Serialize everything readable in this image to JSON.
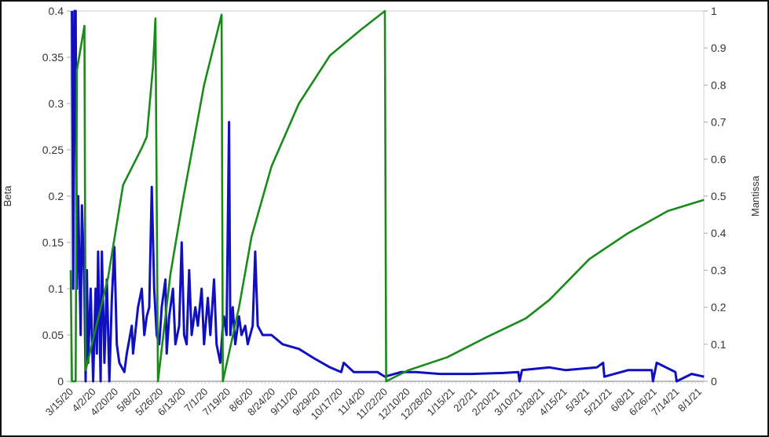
{
  "chart_data": {
    "type": "line",
    "title": "",
    "xlabel": "",
    "ylabel": "Beta",
    "y2label": "Mantissa",
    "ylim": [
      0,
      0.4
    ],
    "y2lim": [
      0,
      1
    ],
    "yticks": [
      "0",
      "0.05",
      "0.1",
      "0.15",
      "0.2",
      "0.25",
      "0.3",
      "0.35",
      "0.4"
    ],
    "y2ticks": [
      "0",
      "0.1",
      "0.2",
      "0.3",
      "0.4",
      "0.5",
      "0.6",
      "0.7",
      "0.8",
      "0.9",
      "1"
    ],
    "xticks": [
      "3/15/20",
      "4/2/20",
      "4/20/20",
      "5/8/20",
      "5/26/20",
      "6/13/20",
      "7/1/20",
      "7/19/20",
      "8/6/20",
      "8/24/20",
      "9/11/20",
      "9/29/20",
      "10/17/20",
      "11/4/20",
      "11/22/20",
      "12/10/20",
      "12/28/20",
      "1/15/21",
      "2/2/21",
      "2/20/21",
      "3/10/21",
      "3/28/21",
      "4/15/21",
      "5/3/21",
      "5/21/21",
      "6/8/21",
      "6/26/21",
      "7/14/21",
      "8/1/21"
    ],
    "grid": false,
    "legend": "none",
    "series": [
      {
        "axis": "left",
        "color": "#1010c0",
        "points": [
          [
            "2020-03-16",
            0.4
          ],
          [
            "2020-03-17",
            0.1
          ],
          [
            "2020-03-18",
            0.4
          ],
          [
            "2020-03-19",
            0.4
          ],
          [
            "2020-03-20",
            0.1
          ],
          [
            "2020-03-21",
            0.2
          ],
          [
            "2020-03-23",
            0.05
          ],
          [
            "2020-03-24",
            0.19
          ],
          [
            "2020-03-26",
            0.1
          ],
          [
            "2020-03-27",
            0.0
          ],
          [
            "2020-03-28",
            0.12
          ],
          [
            "2020-03-29",
            0.02
          ],
          [
            "2020-03-31",
            0.1
          ],
          [
            "2020-04-02",
            0.0
          ],
          [
            "2020-04-04",
            0.1
          ],
          [
            "2020-04-05",
            0.03
          ],
          [
            "2020-04-06",
            0.14
          ],
          [
            "2020-04-08",
            0.0
          ],
          [
            "2020-04-09",
            0.14
          ],
          [
            "2020-04-11",
            0.02
          ],
          [
            "2020-04-13",
            0.11
          ],
          [
            "2020-04-15",
            0.0
          ],
          [
            "2020-04-17",
            0.09
          ],
          [
            "2020-04-19",
            0.145
          ],
          [
            "2020-04-21",
            0.04
          ],
          [
            "2020-04-23",
            0.02
          ],
          [
            "2020-04-27",
            0.01
          ],
          [
            "2020-04-29",
            0.03
          ],
          [
            "2020-05-03",
            0.06
          ],
          [
            "2020-05-04",
            0.03
          ],
          [
            "2020-05-08",
            0.08
          ],
          [
            "2020-05-11",
            0.1
          ],
          [
            "2020-05-13",
            0.05
          ],
          [
            "2020-05-15",
            0.07
          ],
          [
            "2020-05-17",
            0.08
          ],
          [
            "2020-05-19",
            0.21
          ],
          [
            "2020-05-21",
            0.1
          ],
          [
            "2020-05-23",
            0.05
          ],
          [
            "2020-05-25",
            0.04
          ],
          [
            "2020-05-27",
            0.08
          ],
          [
            "2020-05-30",
            0.11
          ],
          [
            "2020-05-31",
            0.03
          ],
          [
            "2020-06-02",
            0.07
          ],
          [
            "2020-06-05",
            0.1
          ],
          [
            "2020-06-07",
            0.04
          ],
          [
            "2020-06-10",
            0.06
          ],
          [
            "2020-06-12",
            0.15
          ],
          [
            "2020-06-14",
            0.05
          ],
          [
            "2020-06-16",
            0.04
          ],
          [
            "2020-06-18",
            0.12
          ],
          [
            "2020-06-20",
            0.05
          ],
          [
            "2020-06-23",
            0.08
          ],
          [
            "2020-06-25",
            0.06
          ],
          [
            "2020-06-28",
            0.1
          ],
          [
            "2020-06-30",
            0.04
          ],
          [
            "2020-07-03",
            0.09
          ],
          [
            "2020-07-05",
            0.05
          ],
          [
            "2020-07-08",
            0.11
          ],
          [
            "2020-07-10",
            0.04
          ],
          [
            "2020-07-13",
            0.02
          ],
          [
            "2020-07-15",
            0.06
          ],
          [
            "2020-07-16",
            0.07
          ],
          [
            "2020-07-18",
            0.05
          ],
          [
            "2020-07-20",
            0.28
          ],
          [
            "2020-07-21",
            0.05
          ],
          [
            "2020-07-23",
            0.08
          ],
          [
            "2020-07-25",
            0.04
          ],
          [
            "2020-07-28",
            0.07
          ],
          [
            "2020-07-30",
            0.05
          ],
          [
            "2020-08-02",
            0.06
          ],
          [
            "2020-08-04",
            0.04
          ],
          [
            "2020-08-08",
            0.06
          ],
          [
            "2020-08-10",
            0.14
          ],
          [
            "2020-08-12",
            0.06
          ],
          [
            "2020-08-16",
            0.05
          ],
          [
            "2020-08-23",
            0.05
          ],
          [
            "2020-09-01",
            0.04
          ],
          [
            "2020-09-14",
            0.035
          ],
          [
            "2020-09-26",
            0.025
          ],
          [
            "2020-10-09",
            0.015
          ],
          [
            "2020-10-18",
            0.01
          ],
          [
            "2020-10-20",
            0.02
          ],
          [
            "2020-10-28",
            0.01
          ],
          [
            "2020-11-16",
            0.01
          ],
          [
            "2020-11-22",
            0.005
          ],
          [
            "2020-12-05",
            0.01
          ],
          [
            "2020-12-17",
            0.01
          ],
          [
            "2021-01-05",
            0.008
          ],
          [
            "2021-01-30",
            0.008
          ],
          [
            "2021-02-25",
            0.009
          ],
          [
            "2021-03-09",
            0.01
          ],
          [
            "2021-03-10",
            0.0
          ],
          [
            "2021-03-12",
            0.012
          ],
          [
            "2021-04-03",
            0.015
          ],
          [
            "2021-04-16",
            0.012
          ],
          [
            "2021-05-11",
            0.015
          ],
          [
            "2021-05-16",
            0.02
          ],
          [
            "2021-05-17",
            0.005
          ],
          [
            "2021-06-05",
            0.012
          ],
          [
            "2021-06-24",
            0.012
          ],
          [
            "2021-06-25",
            0.0
          ],
          [
            "2021-06-28",
            0.02
          ],
          [
            "2021-07-13",
            0.01
          ],
          [
            "2021-07-14",
            0.0
          ],
          [
            "2021-07-26",
            0.008
          ],
          [
            "2021-08-05",
            0.005
          ]
        ]
      },
      {
        "axis": "right",
        "color": "#1a8a1a",
        "points": [
          [
            "2020-03-15",
            0.3
          ],
          [
            "2020-03-16",
            0.0
          ],
          [
            "2020-03-19",
            0.0
          ],
          [
            "2020-03-20",
            0.84
          ],
          [
            "2020-03-26",
            0.96
          ],
          [
            "2020-03-27",
            0.03
          ],
          [
            "2020-04-14",
            0.28
          ],
          [
            "2020-04-26",
            0.53
          ],
          [
            "2020-05-11",
            0.63
          ],
          [
            "2020-05-15",
            0.66
          ],
          [
            "2020-05-20",
            0.85
          ],
          [
            "2020-05-22",
            0.98
          ],
          [
            "2020-05-24",
            0.0
          ],
          [
            "2020-06-03",
            0.29
          ],
          [
            "2020-06-13",
            0.49
          ],
          [
            "2020-06-30",
            0.8
          ],
          [
            "2020-07-14",
            0.99
          ],
          [
            "2020-07-15",
            0.0
          ],
          [
            "2020-07-28",
            0.2
          ],
          [
            "2020-08-07",
            0.39
          ],
          [
            "2020-08-23",
            0.58
          ],
          [
            "2020-09-14",
            0.75
          ],
          [
            "2020-10-09",
            0.88
          ],
          [
            "2020-11-03",
            0.95
          ],
          [
            "2020-11-22",
            1.0
          ],
          [
            "2020-11-23",
            0.0
          ],
          [
            "2020-12-11",
            0.03
          ],
          [
            "2021-01-11",
            0.065
          ],
          [
            "2021-02-12",
            0.12
          ],
          [
            "2021-03-15",
            0.17
          ],
          [
            "2021-04-03",
            0.22
          ],
          [
            "2021-05-05",
            0.33
          ],
          [
            "2021-06-05",
            0.4
          ],
          [
            "2021-07-07",
            0.46
          ],
          [
            "2021-08-05",
            0.49
          ]
        ]
      }
    ]
  }
}
